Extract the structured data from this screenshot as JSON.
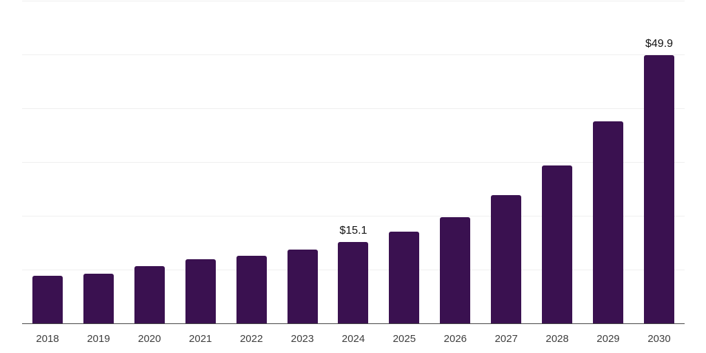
{
  "chart_data": {
    "type": "bar",
    "categories": [
      "2018",
      "2019",
      "2020",
      "2021",
      "2022",
      "2023",
      "2024",
      "2025",
      "2026",
      "2027",
      "2028",
      "2029",
      "2030"
    ],
    "values": [
      8.9,
      9.2,
      10.6,
      11.9,
      12.6,
      13.7,
      15.1,
      17.0,
      19.8,
      23.9,
      29.3,
      37.6,
      49.9
    ],
    "data_labels": {
      "2024": "$15.1",
      "2030": "$49.9"
    },
    "ylim": [
      0,
      60
    ],
    "gridline_step": 10,
    "grid": true,
    "legend": false,
    "layout": {
      "y_axis_tick_labels_visible": false,
      "data_label_position": "above-bar"
    },
    "colors": {
      "bar": "#3a1150",
      "grid": "#efefef",
      "axis": "#444444",
      "tick_label": "#3d3d3d",
      "data_label": "#111111",
      "background": "#ffffff"
    }
  }
}
